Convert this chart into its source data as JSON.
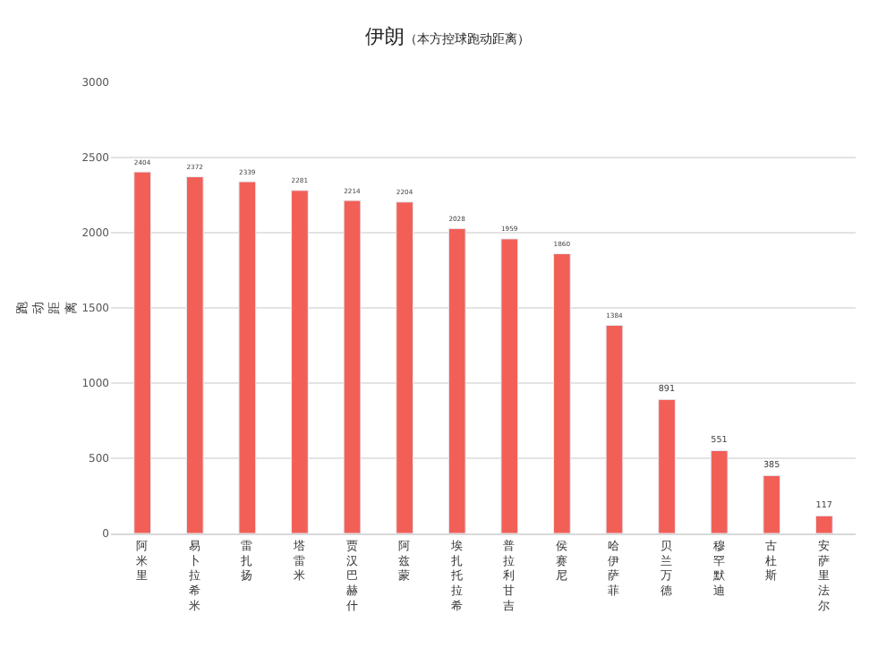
{
  "chart_data": {
    "type": "bar",
    "title": "伊朗",
    "subtitle": "（本方控球跑动距离）",
    "ylabel": "跑动距离",
    "categories": [
      "阿米里",
      "易卜拉希米",
      "雷扎扬",
      "塔雷米",
      "贾汉巴赫什",
      "阿兹蒙",
      "埃扎托拉希",
      "普拉利甘吉",
      "侯赛尼",
      "哈伊萨菲",
      "贝兰万德",
      "穆罕默迪",
      "古杜斯",
      "安萨里法尔"
    ],
    "values": [
      2404,
      2372,
      2339,
      2281,
      2214,
      2204,
      2028,
      1959,
      1860,
      1384,
      891,
      551,
      385,
      117
    ],
    "color": "#f25f57",
    "ylim": [
      0,
      3000
    ],
    "yticks": [
      0,
      500,
      1000,
      1500,
      2000,
      2500,
      3000
    ],
    "grid": "y",
    "data_labels": true
  }
}
